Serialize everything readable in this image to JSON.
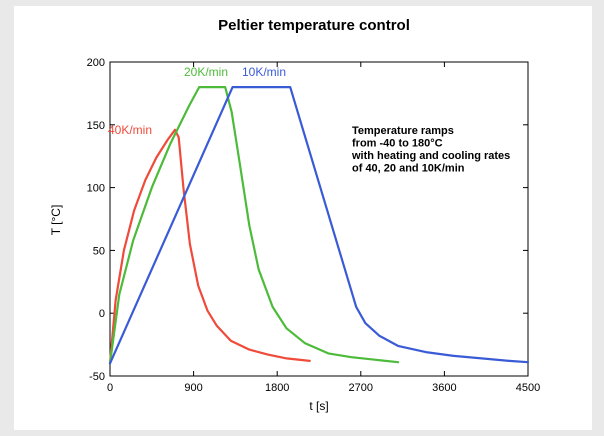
{
  "chart_data": {
    "type": "line",
    "title": "Peltier temperature control",
    "xlabel": "t  [s]",
    "ylabel": "T  [°C]",
    "xlim": [
      0,
      4500
    ],
    "ylim": [
      -50,
      200
    ],
    "xticks": [
      0,
      900,
      1800,
      2700,
      3600,
      4500
    ],
    "yticks": [
      -50,
      0,
      50,
      100,
      150,
      200
    ],
    "grid": false,
    "annotation": [
      "Temperature ramps",
      "from  -40 to 180°C",
      "with heating and cooling rates",
      "of 40, 20 and 10K/min"
    ],
    "series": [
      {
        "name": "40K/min",
        "color": "#f04a3a",
        "x": [
          0,
          60,
          150,
          260,
          380,
          500,
          620,
          700,
          740,
          790,
          860,
          950,
          1050,
          1150,
          1300,
          1500,
          1700,
          1900,
          2150
        ],
        "y": [
          -40,
          10,
          50,
          82,
          106,
          124,
          138,
          146,
          140,
          100,
          55,
          22,
          2,
          -10,
          -22,
          -29,
          -33,
          -36,
          -38
        ]
      },
      {
        "name": "20K/min",
        "color": "#4cbb3a",
        "x": [
          0,
          100,
          250,
          450,
          650,
          850,
          960,
          1240,
          1310,
          1400,
          1500,
          1600,
          1750,
          1900,
          2100,
          2350,
          2600,
          2850,
          3100
        ],
        "y": [
          -40,
          15,
          58,
          100,
          135,
          165,
          180,
          180,
          160,
          118,
          70,
          35,
          5,
          -12,
          -24,
          -32,
          -35,
          -37,
          -39
        ]
      },
      {
        "name": "10K/min",
        "color": "#3a5bd6",
        "x": [
          0,
          1320,
          1940,
          2650,
          2750,
          2900,
          3100,
          3400,
          3700,
          4000,
          4300,
          4500
        ],
        "y": [
          -40,
          180,
          180,
          5,
          -8,
          -18,
          -26,
          -31,
          -34,
          -36,
          -38,
          -39
        ]
      }
    ]
  }
}
